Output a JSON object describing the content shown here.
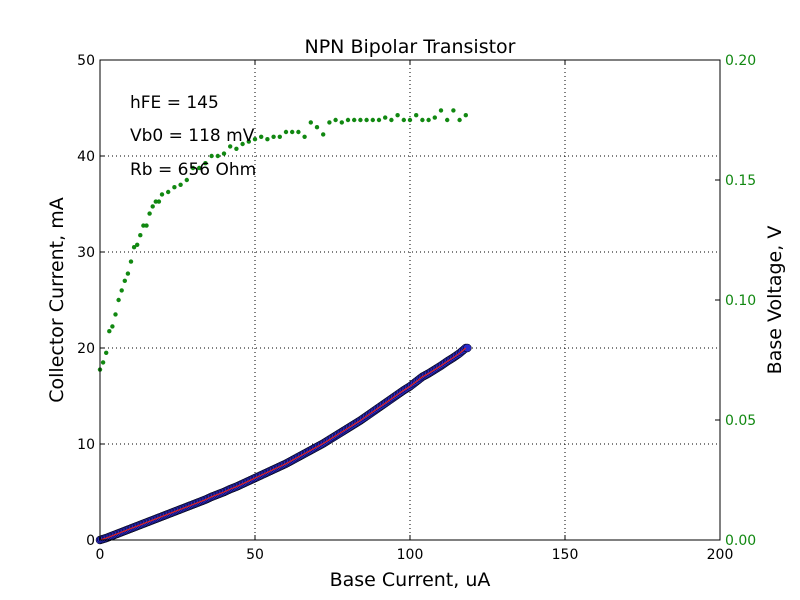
{
  "chart_data": {
    "type": "scatter",
    "title": "NPN Bipolar Transistor",
    "xlabel": "Base Current, uA",
    "ylabel": "Collector Current, mA",
    "y2label": "Base Voltage, V",
    "xlim": [
      0,
      200
    ],
    "ylim": [
      0,
      50
    ],
    "y2lim": [
      0,
      0.2
    ],
    "xticks": [
      0,
      50,
      100,
      150,
      200
    ],
    "yticks": [
      0,
      10,
      20,
      30,
      40,
      50
    ],
    "y2ticks": [
      0.0,
      0.05,
      0.1,
      0.15,
      0.2
    ],
    "xtick_labels": [
      "0",
      "50",
      "100",
      "150",
      "200"
    ],
    "ytick_labels": [
      "0",
      "10",
      "20",
      "30",
      "40",
      "50"
    ],
    "y2tick_labels": [
      "0.00",
      "0.05",
      "0.10",
      "0.15",
      "0.20"
    ],
    "grid": true,
    "annotations": [
      "hFE = 145",
      "Vb0 = 118 mV",
      "Rb = 656 Ohm"
    ],
    "colors": {
      "collector": "#2a2acc",
      "fit": "#dd2222",
      "base_voltage": "#118811",
      "y2axis": "#118811"
    },
    "series": [
      {
        "axis": "left",
        "style": "marker-circle",
        "x_range": [
          0,
          118.5
        ],
        "x": [
          0,
          2,
          4,
          6,
          8,
          10,
          12,
          14,
          16,
          18,
          20,
          22,
          24,
          26,
          28,
          30,
          32,
          34,
          36,
          38,
          40,
          42,
          44,
          46,
          48,
          50,
          52,
          54,
          56,
          58,
          60,
          62,
          64,
          66,
          68,
          70,
          72,
          74,
          76,
          78,
          80,
          82,
          84,
          86,
          88,
          90,
          92,
          94,
          96,
          98,
          100,
          102,
          104,
          106,
          108,
          110,
          112,
          114,
          116,
          118
        ],
        "values": [
          0.0,
          0.2,
          0.45,
          0.7,
          0.95,
          1.2,
          1.45,
          1.7,
          1.95,
          2.2,
          2.45,
          2.7,
          2.95,
          3.2,
          3.45,
          3.7,
          3.95,
          4.2,
          4.5,
          4.75,
          5.0,
          5.3,
          5.55,
          5.85,
          6.15,
          6.45,
          6.75,
          7.05,
          7.35,
          7.65,
          7.95,
          8.3,
          8.65,
          9.0,
          9.35,
          9.7,
          10.05,
          10.45,
          10.85,
          11.25,
          11.65,
          12.05,
          12.45,
          12.9,
          13.35,
          13.8,
          14.25,
          14.7,
          15.15,
          15.6,
          16.0,
          16.5,
          17.0,
          17.35,
          17.75,
          18.15,
          18.6,
          19.0,
          19.45,
          20.0
        ]
      },
      {
        "axis": "right",
        "style": "dots",
        "x": [
          0,
          1,
          2,
          3,
          4,
          5,
          6,
          7,
          8,
          9,
          10,
          11,
          12,
          13,
          14,
          15,
          16,
          17,
          18,
          19,
          20,
          22,
          24,
          26,
          28,
          30,
          32,
          34,
          36,
          38,
          40,
          42,
          44,
          46,
          48,
          50,
          52,
          54,
          56,
          58,
          60,
          62,
          64,
          66,
          68,
          70,
          72,
          74,
          76,
          78,
          80,
          82,
          84,
          86,
          88,
          90,
          92,
          94,
          96,
          98,
          100,
          102,
          104,
          106,
          108,
          110,
          112,
          114,
          116,
          118
        ],
        "values": [
          0.071,
          0.074,
          0.078,
          0.087,
          0.089,
          0.094,
          0.1,
          0.104,
          0.108,
          0.111,
          0.116,
          0.122,
          0.123,
          0.127,
          0.131,
          0.131,
          0.136,
          0.139,
          0.141,
          0.141,
          0.144,
          0.145,
          0.147,
          0.148,
          0.15,
          0.155,
          0.155,
          0.157,
          0.16,
          0.16,
          0.161,
          0.164,
          0.163,
          0.165,
          0.166,
          0.167,
          0.168,
          0.167,
          0.168,
          0.168,
          0.17,
          0.17,
          0.17,
          0.168,
          0.174,
          0.172,
          0.169,
          0.174,
          0.175,
          0.174,
          0.175,
          0.175,
          0.175,
          0.175,
          0.175,
          0.175,
          0.176,
          0.175,
          0.177,
          0.175,
          0.175,
          0.177,
          0.175,
          0.175,
          0.176,
          0.179,
          0.175,
          0.179,
          0.175,
          0.177
        ]
      }
    ]
  }
}
